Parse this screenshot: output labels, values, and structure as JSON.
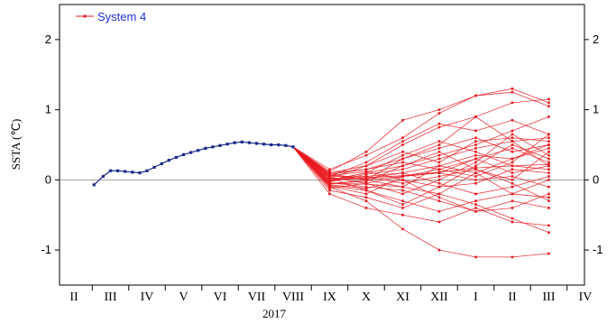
{
  "chart_data": {
    "type": "line",
    "ylabel": "SSTA (℃)",
    "year_label": "2017",
    "ylim": [
      -1.5,
      2.5
    ],
    "yticks": [
      -1,
      0,
      1,
      2
    ],
    "months": [
      "II",
      "III",
      "IV",
      "V",
      "VI",
      "VII",
      "VIII",
      "IX",
      "X",
      "XI",
      "XII",
      "I",
      "II",
      "III",
      "IV"
    ],
    "legend": {
      "label": "System 4",
      "position": "top-left"
    },
    "colors": {
      "observed": "#1a2a8a",
      "forecast": "#e8191f",
      "legend_text": "#1f2fd6",
      "zero_line": "#888888"
    },
    "observed": {
      "x": [
        0.55,
        0.8,
        1.0,
        1.2,
        1.4,
        1.6,
        1.8,
        2.0,
        2.2,
        2.4,
        2.6,
        2.8,
        3.0,
        3.2,
        3.4,
        3.6,
        3.8,
        4.0,
        4.2,
        4.4,
        4.6,
        4.8,
        5.0,
        5.2,
        5.4,
        5.6,
        5.8,
        6.0
      ],
      "values": [
        -0.07,
        0.05,
        0.13,
        0.13,
        0.12,
        0.11,
        0.1,
        0.13,
        0.18,
        0.23,
        0.28,
        0.32,
        0.36,
        0.39,
        0.42,
        0.45,
        0.47,
        0.49,
        0.51,
        0.53,
        0.54,
        0.53,
        0.52,
        0.51,
        0.5,
        0.5,
        0.49,
        0.47
      ]
    },
    "forecast": {
      "start": 0.47,
      "x": [
        7,
        8,
        9,
        10,
        11,
        12,
        13
      ],
      "series": [
        {
          "values": [
            0.02,
            0.03,
            0.06,
            0.11,
            0.17,
            0.2,
            0.22
          ]
        },
        {
          "values": [
            -0.05,
            -0.06,
            -0.1,
            -0.2,
            -0.35,
            -0.55,
            -0.75
          ]
        },
        {
          "values": [
            0.1,
            0.2,
            0.5,
            0.75,
            0.9,
            1.1,
            1.15
          ]
        },
        {
          "values": [
            0.12,
            0.4,
            0.85,
            1.0,
            1.2,
            1.3,
            1.1
          ]
        },
        {
          "values": [
            0.15,
            0.35,
            0.6,
            0.95,
            1.2,
            1.25,
            1.05
          ]
        },
        {
          "values": [
            -0.1,
            -0.3,
            -0.7,
            -1.0,
            -1.1,
            -1.1,
            -1.05
          ]
        },
        {
          "values": [
            -0.2,
            -0.4,
            -0.5,
            -0.6,
            -0.4,
            -0.6,
            -0.65
          ]
        },
        {
          "values": [
            0.05,
            0.25,
            0.55,
            0.8,
            0.7,
            0.85,
            0.65
          ]
        },
        {
          "values": [
            -0.08,
            -0.15,
            -0.3,
            -0.45,
            -0.3,
            -0.2,
            0.0
          ]
        },
        {
          "values": [
            0.08,
            0.15,
            0.3,
            0.5,
            0.9,
            0.55,
            0.6
          ]
        },
        {
          "values": [
            -0.15,
            -0.25,
            -0.4,
            -0.2,
            0.1,
            0.3,
            0.45
          ]
        },
        {
          "values": [
            0.0,
            0.1,
            0.2,
            0.35,
            0.5,
            0.7,
            0.9
          ]
        },
        {
          "values": [
            -0.12,
            -0.05,
            0.05,
            0.1,
            0.3,
            0.1,
            0.2
          ]
        },
        {
          "values": [
            0.03,
            -0.15,
            -0.35,
            -0.1,
            0.2,
            0.5,
            0.3
          ]
        },
        {
          "values": [
            -0.02,
            0.05,
            0.1,
            0.2,
            0.35,
            0.3,
            0.5
          ]
        },
        {
          "values": [
            0.06,
            0.12,
            0.0,
            -0.1,
            -0.05,
            0.15,
            0.1
          ]
        },
        {
          "values": [
            -0.04,
            -0.1,
            -0.15,
            -0.3,
            -0.45,
            -0.3,
            -0.4
          ]
        },
        {
          "values": [
            0.1,
            0.15,
            0.25,
            0.15,
            0.05,
            0.25,
            0.65
          ]
        },
        {
          "values": [
            -0.06,
            0.0,
            0.3,
            0.45,
            0.6,
            0.4,
            0.5
          ]
        },
        {
          "values": [
            0.04,
            -0.05,
            -0.2,
            0.0,
            0.25,
            0.65,
            0.35
          ]
        },
        {
          "values": [
            -0.03,
            0.08,
            0.15,
            0.3,
            0.45,
            0.55,
            0.2
          ]
        },
        {
          "values": [
            0.07,
            0.0,
            -0.1,
            0.2,
            0.1,
            -0.2,
            -0.25
          ]
        },
        {
          "values": [
            -0.09,
            -0.2,
            0.05,
            0.1,
            0.0,
            0.05,
            -0.1
          ]
        },
        {
          "values": [
            0.0,
            0.02,
            0.1,
            -0.05,
            -0.2,
            -0.1,
            0.05
          ]
        },
        {
          "values": [
            -0.01,
            0.1,
            0.35,
            0.55,
            0.4,
            0.2,
            0.15
          ]
        },
        {
          "values": [
            0.05,
            0.05,
            -0.05,
            0.05,
            0.15,
            -0.05,
            -0.3
          ]
        },
        {
          "values": [
            -0.07,
            -0.12,
            0.0,
            -0.25,
            -0.45,
            -0.4,
            -0.2
          ]
        },
        {
          "values": [
            0.02,
            0.2,
            0.4,
            0.25,
            0.55,
            0.6,
            0.55
          ]
        },
        {
          "values": [
            -0.05,
            -0.02,
            0.2,
            0.4,
            0.15,
            0.0,
            0.4
          ]
        },
        {
          "values": [
            0.09,
            0.0,
            0.05,
            0.15,
            0.3,
            0.45,
            0.25
          ]
        }
      ]
    }
  }
}
